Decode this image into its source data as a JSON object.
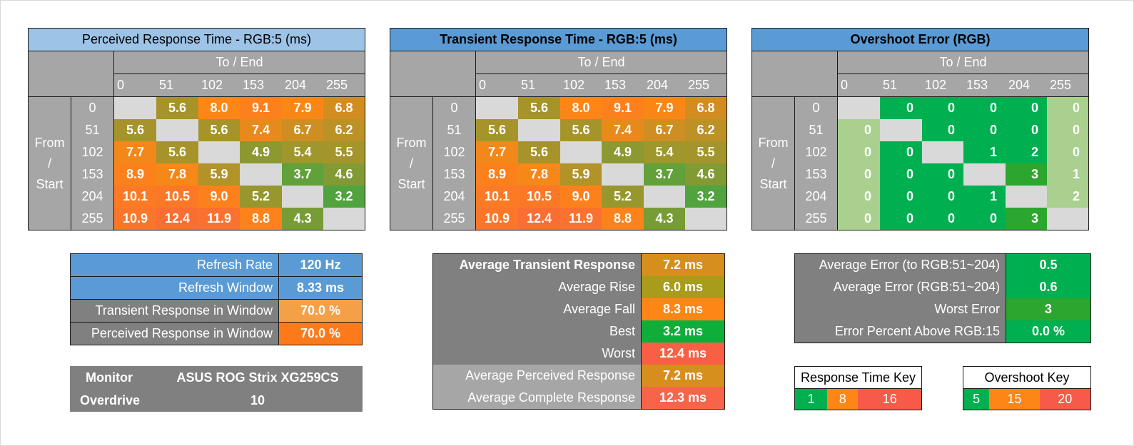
{
  "labels": {
    "to_end": "To / End",
    "from_start_lines": [
      "From",
      "/",
      "Start"
    ],
    "levels": [
      "0",
      "51",
      "102",
      "153",
      "204",
      "255"
    ]
  },
  "chart_data": [
    {
      "type": "heatmap",
      "title": "Perceived Response Time - RGB:5 (ms)",
      "xlabel": "To / End",
      "ylabel": "From / Start",
      "categories": [
        "0",
        "51",
        "102",
        "153",
        "204",
        "255"
      ],
      "values": [
        [
          null,
          5.6,
          8.0,
          9.1,
          7.9,
          6.8
        ],
        [
          5.6,
          null,
          5.6,
          7.4,
          6.7,
          6.2
        ],
        [
          7.7,
          5.6,
          null,
          4.9,
          5.4,
          5.5
        ],
        [
          8.9,
          7.8,
          5.9,
          null,
          3.7,
          4.6
        ],
        [
          10.1,
          10.5,
          9.0,
          5.2,
          null,
          3.2
        ],
        [
          10.9,
          12.4,
          11.9,
          8.8,
          4.3,
          null
        ]
      ],
      "display": [
        [
          "",
          "5.6",
          "8.0",
          "9.1",
          "7.9",
          "6.8"
        ],
        [
          "5.6",
          "",
          "5.6",
          "7.4",
          "6.7",
          "6.2"
        ],
        [
          "7.7",
          "5.6",
          "",
          "4.9",
          "5.4",
          "5.5"
        ],
        [
          "8.9",
          "7.8",
          "5.9",
          "",
          "3.7",
          "4.6"
        ],
        [
          "10.1",
          "10.5",
          "9.0",
          "5.2",
          "",
          "3.2"
        ],
        [
          "10.9",
          "12.4",
          "11.9",
          "8.8",
          "4.3",
          ""
        ]
      ]
    },
    {
      "type": "heatmap",
      "title": "Transient Response Time - RGB:5 (ms)",
      "xlabel": "To / End",
      "ylabel": "From / Start",
      "categories": [
        "0",
        "51",
        "102",
        "153",
        "204",
        "255"
      ],
      "values": [
        [
          null,
          5.6,
          8.0,
          9.1,
          7.9,
          6.8
        ],
        [
          5.6,
          null,
          5.6,
          7.4,
          6.7,
          6.2
        ],
        [
          7.7,
          5.6,
          null,
          4.9,
          5.4,
          5.5
        ],
        [
          8.9,
          7.8,
          5.9,
          null,
          3.7,
          4.6
        ],
        [
          10.1,
          10.5,
          9.0,
          5.2,
          null,
          3.2
        ],
        [
          10.9,
          12.4,
          11.9,
          8.8,
          4.3,
          null
        ]
      ],
      "display": [
        [
          "",
          "5.6",
          "8.0",
          "9.1",
          "7.9",
          "6.8"
        ],
        [
          "5.6",
          "",
          "5.6",
          "7.4",
          "6.7",
          "6.2"
        ],
        [
          "7.7",
          "5.6",
          "",
          "4.9",
          "5.4",
          "5.5"
        ],
        [
          "8.9",
          "7.8",
          "5.9",
          "",
          "3.7",
          "4.6"
        ],
        [
          "10.1",
          "10.5",
          "9.0",
          "5.2",
          "",
          "3.2"
        ],
        [
          "10.9",
          "12.4",
          "11.9",
          "8.8",
          "4.3",
          ""
        ]
      ]
    },
    {
      "type": "heatmap",
      "title": "Overshoot Error (RGB)",
      "xlabel": "To / End",
      "ylabel": "From / Start",
      "categories": [
        "0",
        "51",
        "102",
        "153",
        "204",
        "255"
      ],
      "values": [
        [
          null,
          0,
          0,
          0,
          0,
          0
        ],
        [
          0,
          null,
          0,
          0,
          0,
          0
        ],
        [
          0,
          0,
          null,
          1,
          2,
          0
        ],
        [
          0,
          0,
          0,
          null,
          3,
          1
        ],
        [
          0,
          0,
          0,
          1,
          null,
          2
        ],
        [
          0,
          0,
          0,
          0,
          3,
          null
        ]
      ],
      "display": [
        [
          "",
          "0",
          "0",
          "0",
          "0",
          "0"
        ],
        [
          "0",
          "",
          "0",
          "0",
          "0",
          "0"
        ],
        [
          "0",
          "0",
          "",
          "1",
          "2",
          "0"
        ],
        [
          "0",
          "0",
          "0",
          "",
          "3",
          "1"
        ],
        [
          "0",
          "0",
          "0",
          "1",
          "",
          "2"
        ],
        [
          "0",
          "0",
          "0",
          "0",
          "3",
          ""
        ]
      ]
    }
  ],
  "refresh_stats": [
    {
      "label": "Refresh Rate",
      "value": "120 Hz"
    },
    {
      "label": "Refresh Window",
      "value": "8.33 ms"
    },
    {
      "label": "Transient Response in Window",
      "value": "70.0 %"
    },
    {
      "label": "Perceived Response in Window",
      "value": "70.0 %"
    }
  ],
  "monitor_info": [
    {
      "label": "Monitor",
      "value": "ASUS ROG Strix XG259CS"
    },
    {
      "label": "Overdrive",
      "value": "10"
    }
  ],
  "response_stats": [
    {
      "label": "Average Transient Response",
      "value": "7.2 ms"
    },
    {
      "label": "Average Rise",
      "value": "6.0 ms"
    },
    {
      "label": "Average Fall",
      "value": "8.3 ms"
    },
    {
      "label": "Best",
      "value": "3.2 ms"
    },
    {
      "label": "Worst",
      "value": "12.4 ms"
    },
    {
      "label": "Average Perceived Response",
      "value": "7.2 ms"
    },
    {
      "label": "Average Complete Response",
      "value": "12.3 ms"
    }
  ],
  "overshoot_stats": [
    {
      "label": "Average Error (to RGB:51~204)",
      "value": "0.5"
    },
    {
      "label": "Average Error (RGB:51~204)",
      "value": "0.6"
    },
    {
      "label": "Worst Error",
      "value": "3"
    },
    {
      "label": "Error Percent Above RGB:15",
      "value": "0.0 %"
    }
  ],
  "response_key": {
    "title": "Response Time Key",
    "values": [
      "1",
      "8",
      "16"
    ]
  },
  "overshoot_key": {
    "title": "Overshoot Key",
    "values": [
      "5",
      "15",
      "20"
    ]
  },
  "colors": {
    "title_perceived": "#9dc3e6",
    "title_other": "#5b9bd5",
    "header_gray": "#a6a6a6",
    "label_gray": "#808080",
    "diagonal": "#d9d9d9",
    "blue_row": "#5b9bd5",
    "green": "#00b050",
    "orange": "#fd8617",
    "red": "#f85a4a",
    "ov_light": "#a9d08e"
  }
}
